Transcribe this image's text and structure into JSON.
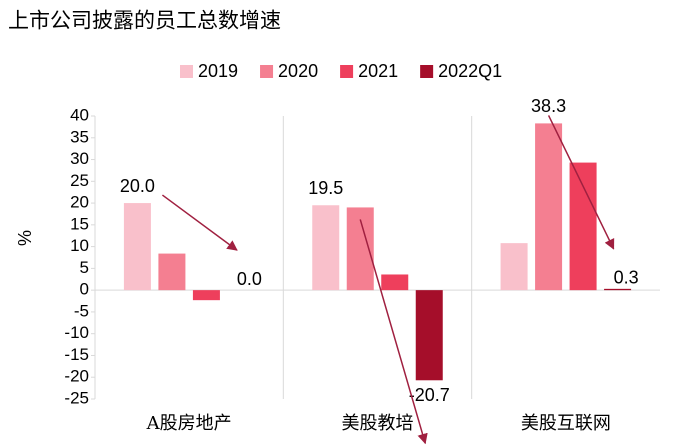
{
  "chart_data": {
    "type": "bar",
    "title": "上市公司披露的员工总数增速",
    "y_label": "%",
    "categories": [
      "A股房地产",
      "美股教培",
      "美股互联网"
    ],
    "series": [
      {
        "name": "2019",
        "color": "#f9c0cb",
        "values": [
          20.0,
          19.5,
          10.8
        ],
        "value_labels": [
          "20.0",
          "19.5",
          null
        ]
      },
      {
        "name": "2020",
        "color": "#f47f91",
        "values": [
          8.4,
          19.0,
          38.3
        ],
        "value_labels": [
          null,
          null,
          "38.3"
        ]
      },
      {
        "name": "2021",
        "color": "#ee3f5c",
        "values": [
          -2.3,
          3.6,
          29.3
        ],
        "value_labels": [
          null,
          null,
          null
        ]
      },
      {
        "name": "2022Q1",
        "color": "#a50e2a",
        "values": [
          0.0,
          -20.7,
          0.3
        ],
        "value_labels": [
          "0.0",
          "-20.7",
          "0.3"
        ]
      }
    ],
    "ylim": [
      -25,
      40
    ],
    "yticks": [
      -25,
      -20,
      -15,
      -10,
      -5,
      0,
      5,
      10,
      15,
      20,
      25,
      30,
      35,
      40
    ],
    "legend": "top"
  }
}
